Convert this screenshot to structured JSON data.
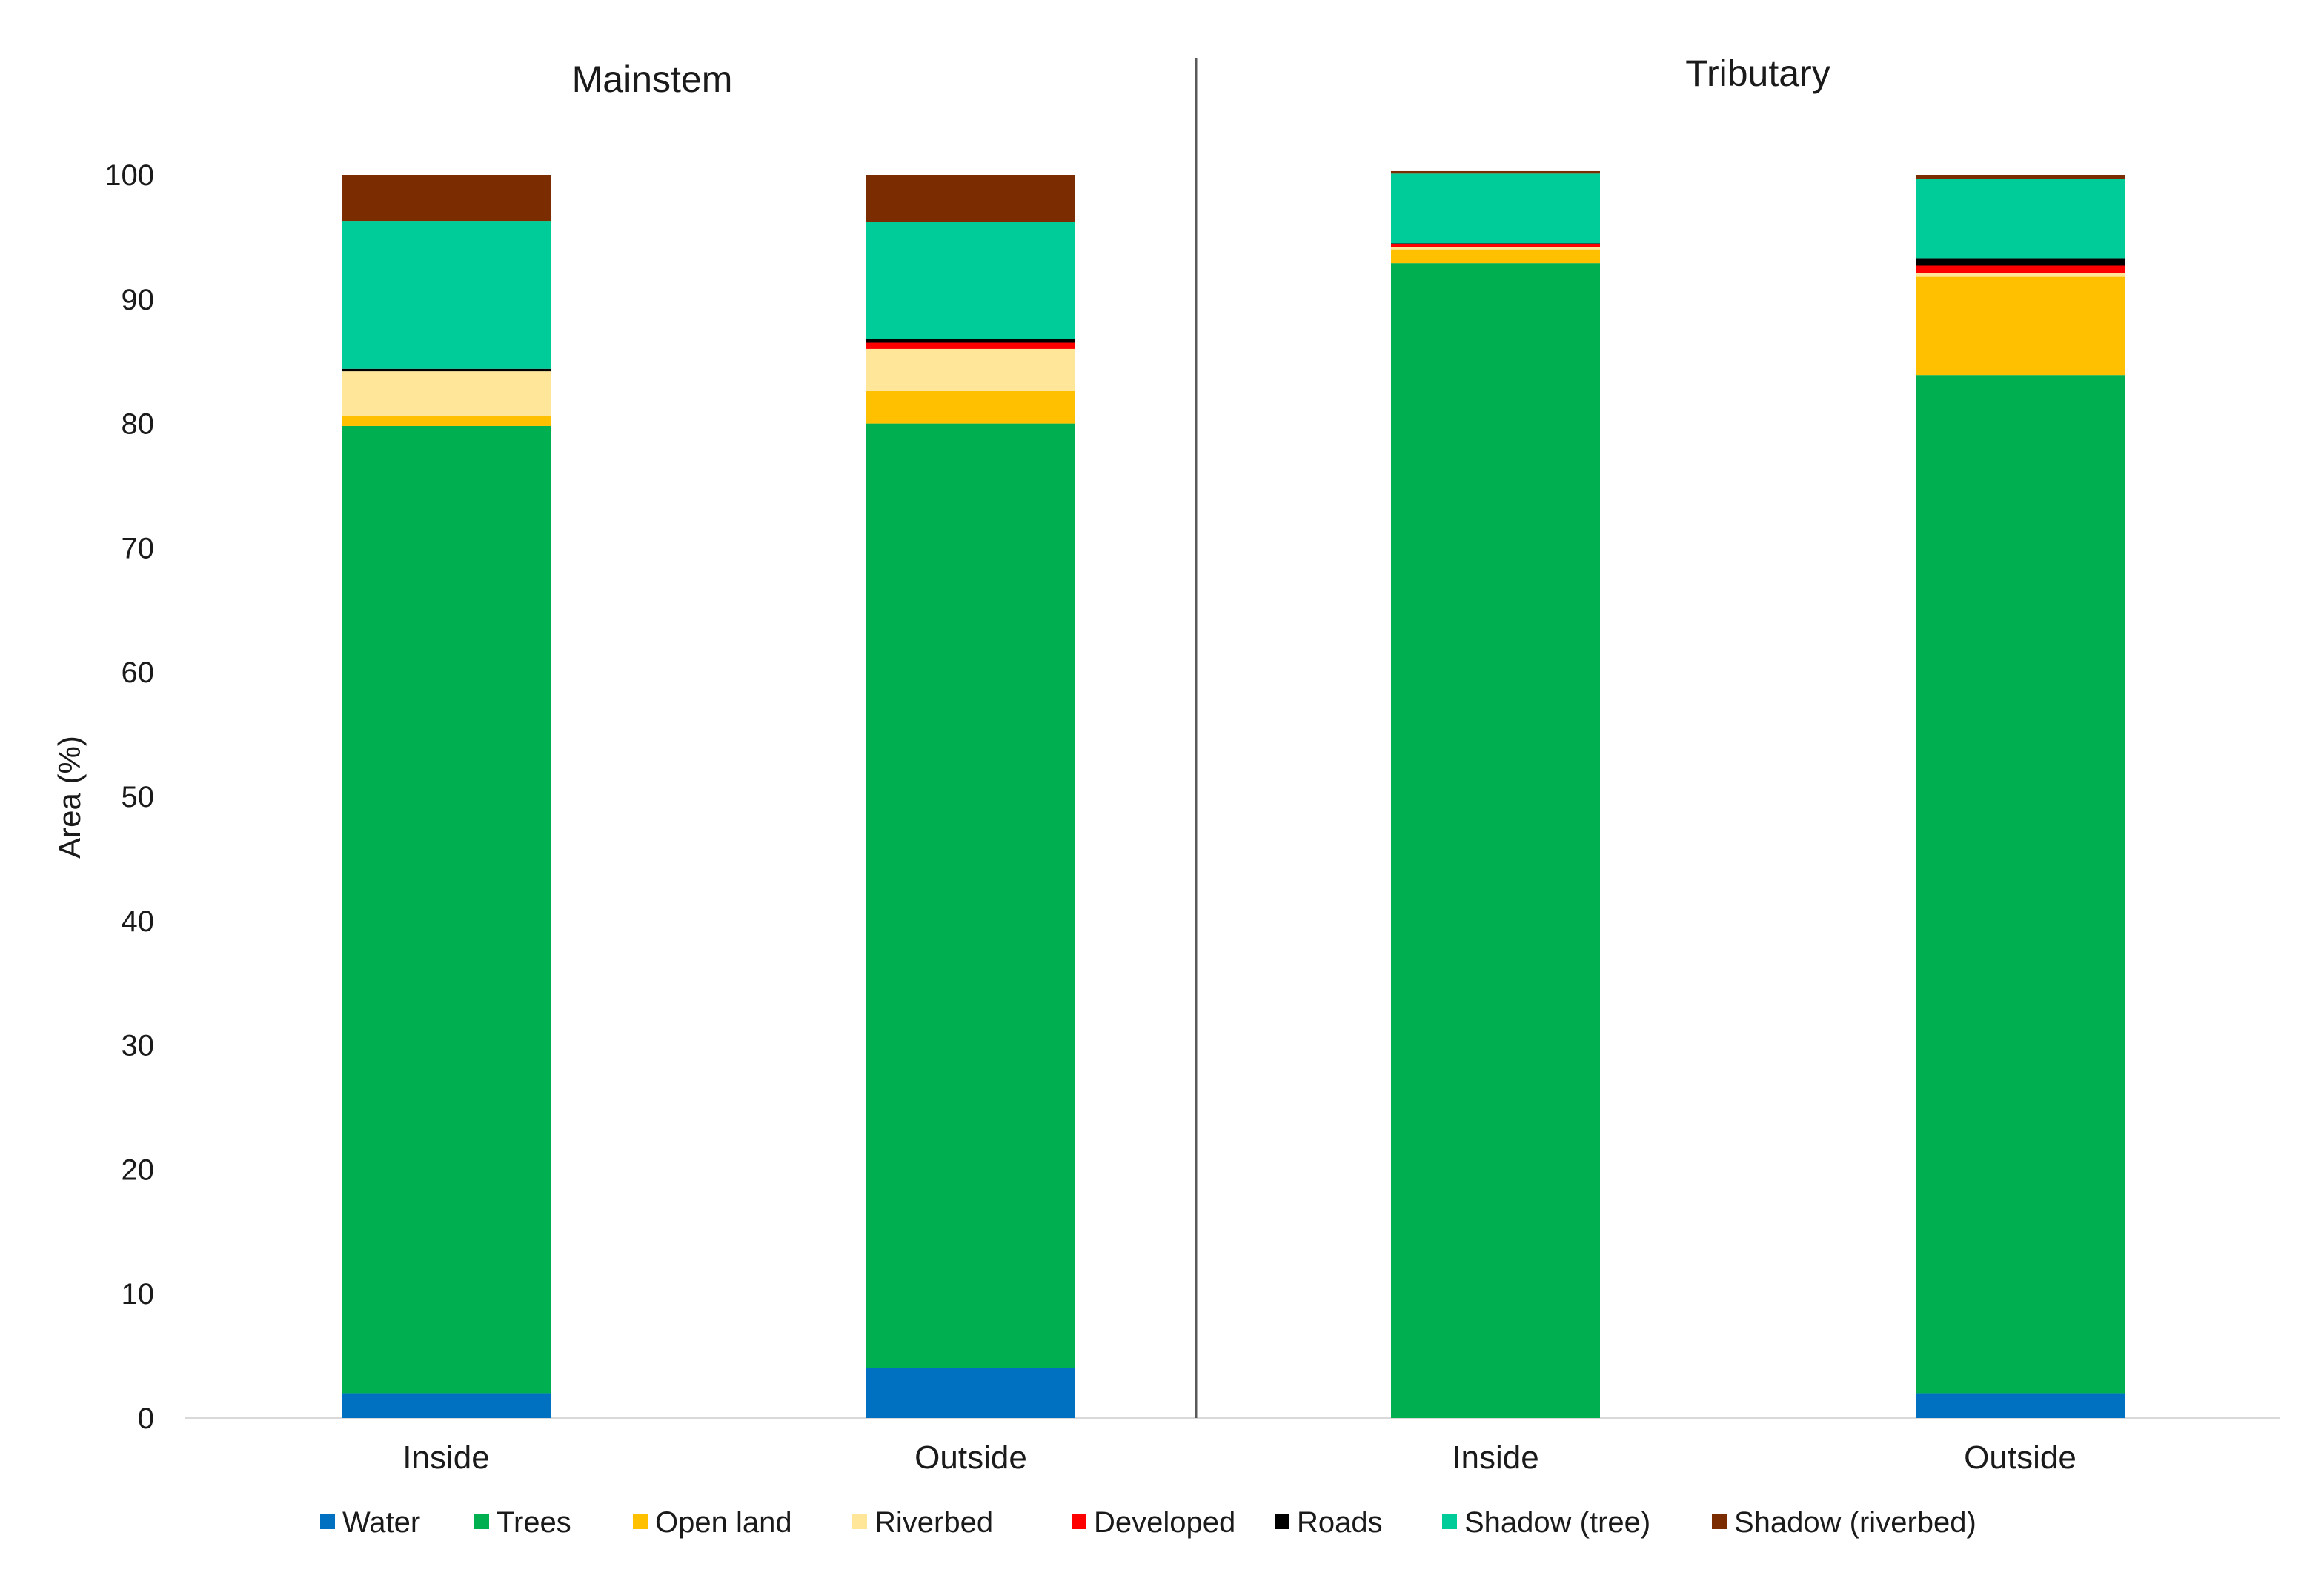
{
  "chart_data": {
    "type": "bar",
    "stacked": true,
    "ylabel": "Area (%)",
    "ylim": [
      0,
      100
    ],
    "yticks": [
      0,
      10,
      20,
      30,
      40,
      50,
      60,
      70,
      80,
      90,
      100
    ],
    "legend_position": "bottom",
    "panels": [
      {
        "title": "Mainstem",
        "categories": [
          "Inside",
          "Outside"
        ],
        "series": [
          {
            "name": "Water",
            "values": [
              2.0,
              4.0
            ]
          },
          {
            "name": "Trees",
            "values": [
              77.8,
              76.0
            ]
          },
          {
            "name": "Open land",
            "values": [
              0.8,
              2.6
            ]
          },
          {
            "name": "Riverbed",
            "values": [
              3.6,
              3.4
            ]
          },
          {
            "name": "Developed",
            "values": [
              0.0,
              0.5
            ]
          },
          {
            "name": "Roads",
            "values": [
              0.2,
              0.3
            ]
          },
          {
            "name": "Shadow (tree)",
            "values": [
              11.9,
              9.4
            ]
          },
          {
            "name": "Shadow (riverbed)",
            "values": [
              3.7,
              3.8
            ]
          }
        ]
      },
      {
        "title": "Tributary",
        "categories": [
          "Inside",
          "Outside"
        ],
        "series": [
          {
            "name": "Water",
            "values": [
              0.0,
              2.0
            ]
          },
          {
            "name": "Trees",
            "values": [
              92.9,
              81.9
            ]
          },
          {
            "name": "Open land",
            "values": [
              1.1,
              7.9
            ]
          },
          {
            "name": "Riverbed",
            "values": [
              0.2,
              0.3
            ]
          },
          {
            "name": "Developed",
            "values": [
              0.2,
              0.6
            ]
          },
          {
            "name": "Roads",
            "values": [
              0.1,
              0.6
            ]
          },
          {
            "name": "Shadow (tree)",
            "values": [
              5.6,
              6.4
            ]
          },
          {
            "name": "Shadow (riverbed)",
            "values": [
              0.2,
              0.3
            ]
          }
        ]
      }
    ],
    "legend": [
      "Water",
      "Trees",
      "Open land",
      "Riverbed",
      "Developed",
      "Roads",
      "Shadow (tree)",
      "Shadow (riverbed)"
    ],
    "colors": {
      "Water": "#0070c0",
      "Trees": "#00b050",
      "Open land": "#ffc000",
      "Riverbed": "#ffe699",
      "Developed": "#ff0000",
      "Roads": "#000000",
      "Shadow (tree)": "#00cc99",
      "Shadow (riverbed)": "#7b2c00"
    }
  }
}
